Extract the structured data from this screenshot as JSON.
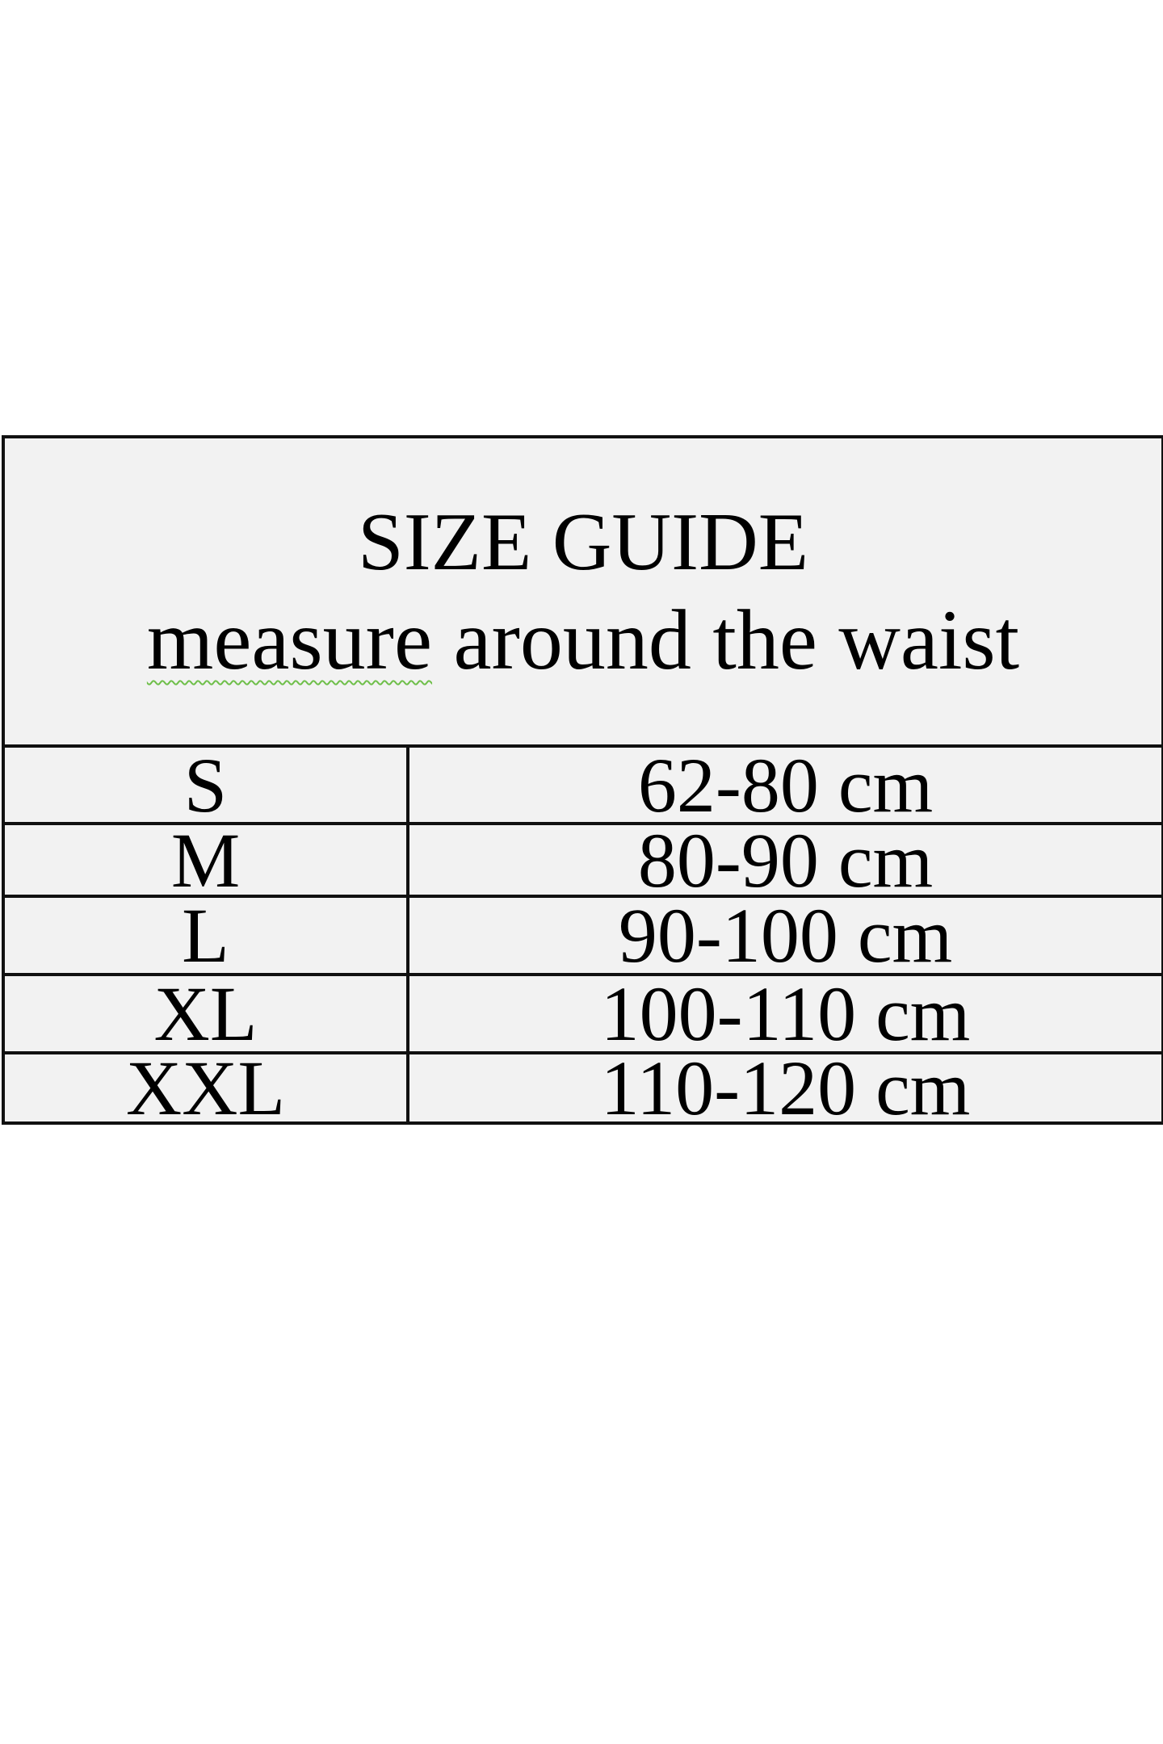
{
  "header": {
    "title": "SIZE GUIDE",
    "subtitle_flagged_word": "measure",
    "subtitle_rest": " around the waist"
  },
  "rows": [
    {
      "size": "S",
      "range": "62-80 cm"
    },
    {
      "size": "M",
      "range": "80-90 cm"
    },
    {
      "size": "L",
      "range": "90-100 cm"
    },
    {
      "size": "XL",
      "range": "100-110 cm"
    },
    {
      "size": "XXL",
      "range": "110-120 cm"
    }
  ],
  "colors": {
    "cell_background": "#f2f2f2",
    "border": "#111111",
    "spellcheck_underline": "#6fbf4a"
  }
}
